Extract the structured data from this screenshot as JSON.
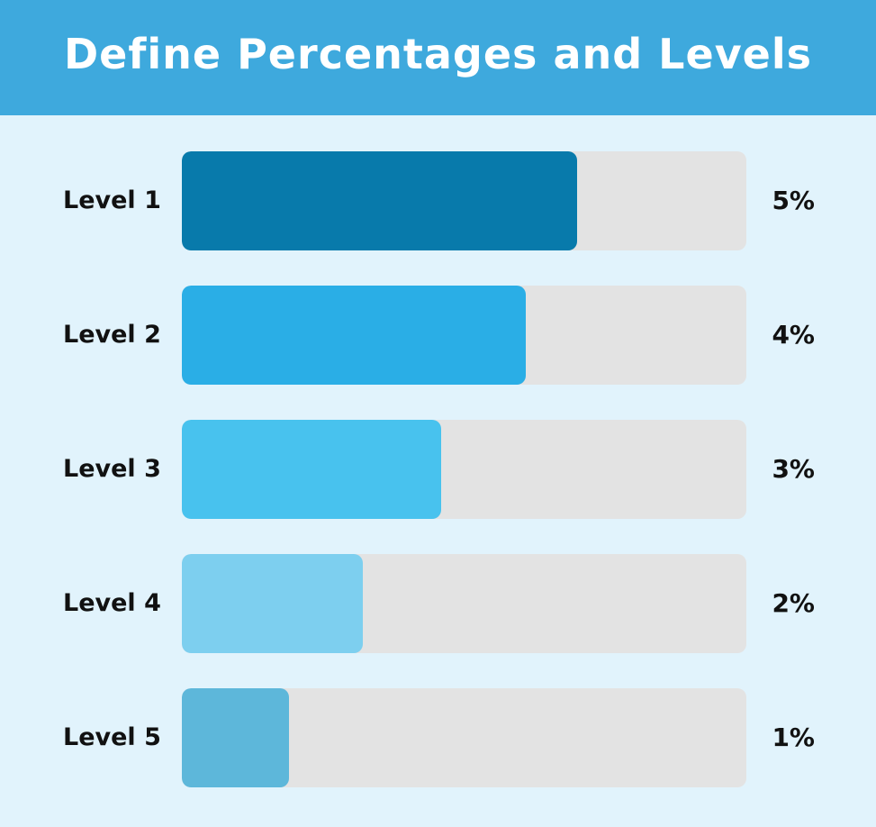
{
  "header": {
    "title": "Define Percentages and Levels",
    "background_color": "#3ea9dd"
  },
  "chart_data": {
    "type": "bar",
    "orientation": "horizontal",
    "title": "Define Percentages and Levels",
    "categories": [
      "Level 1",
      "Level 2",
      "Level 3",
      "Level 4",
      "Level 5"
    ],
    "values": [
      5,
      4,
      3,
      2,
      1
    ],
    "value_labels": [
      "5%",
      "4%",
      "3%",
      "2%",
      "1%"
    ],
    "fill_fractions": [
      0.7,
      0.61,
      0.46,
      0.32,
      0.19
    ],
    "bar_colors": [
      "#087aab",
      "#2aaee6",
      "#48c2ee",
      "#7dcfef",
      "#5db7da"
    ],
    "track_color": "#e3e3e3",
    "background_color": "#e1f3fc",
    "grid": false,
    "legend": "none"
  }
}
